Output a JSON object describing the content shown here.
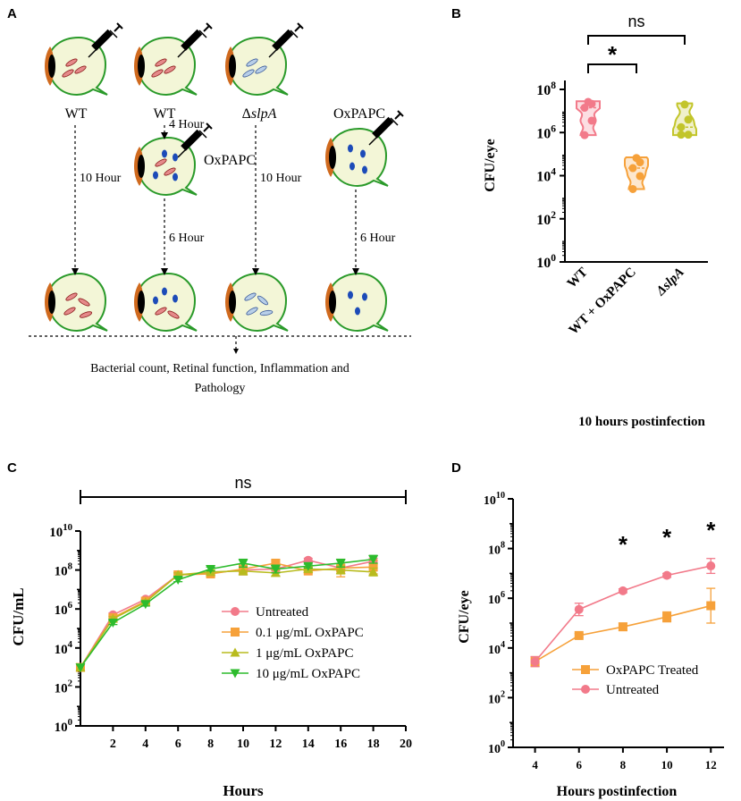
{
  "panels": {
    "a": "A",
    "b": "B",
    "c": "C",
    "d": "D"
  },
  "schematic": {
    "col1_label": "WT",
    "col2_label": "WT",
    "col3_label_prefix": "Δ",
    "col3_label_gene": "slpA",
    "col4_top_label": "OxPAPC",
    "arrow_4h": "4 Hour",
    "col2_mid_label": "OxPAPC",
    "arrow_10h_left": "10 Hour",
    "arrow_6h_mid": "6 Hour",
    "arrow_10h_right": "10 Hour",
    "arrow_6h_right": "6 Hour",
    "outcome_line1": "Bacterial count, Retinal function, Inflammation and",
    "outcome_line2": "Pathology",
    "icons": [
      "syringe-icon",
      "eye-icon",
      "bacteria-icon",
      "oxpapc-dot-icon"
    ]
  },
  "chart_data": [
    {
      "id": "B",
      "type": "violin",
      "title": "",
      "ylabel": "CFU/eye",
      "xlabel": "10 hours postinfection",
      "yscale": "log10",
      "ylim": [
        0,
        8
      ],
      "yticks": [
        {
          "b": "10",
          "e": "0"
        },
        {
          "b": "10",
          "e": "2"
        },
        {
          "b": "10",
          "e": "4"
        },
        {
          "b": "10",
          "e": "6"
        },
        {
          "b": "10",
          "e": "8"
        }
      ],
      "categories": [
        "WT",
        "WT + OxPAPC",
        "ΔslpA"
      ],
      "colors": [
        "#f27a8a",
        "#f6a13a",
        "#c2c52a"
      ],
      "groups": [
        {
          "name": "WT",
          "log_points": [
            7.42,
            7.33,
            7.15,
            6.55,
            5.88
          ],
          "range": [
            5.88,
            7.45
          ]
        },
        {
          "name": "WT + OxPAPC",
          "log_points": [
            4.82,
            4.62,
            4.35,
            3.98,
            3.38
          ],
          "range": [
            3.38,
            4.85
          ]
        },
        {
          "name": "ΔslpA",
          "log_points": [
            7.3,
            6.6,
            6.25,
            5.9,
            5.9
          ],
          "range": [
            5.88,
            7.35
          ]
        }
      ],
      "annotations": [
        {
          "text": "ns",
          "between": [
            "WT",
            "ΔslpA"
          ]
        },
        {
          "text": "*",
          "between": [
            "WT",
            "WT + OxPAPC"
          ]
        }
      ]
    },
    {
      "id": "C",
      "type": "line",
      "ylabel": "CFU/mL",
      "xlabel": "Hours",
      "yscale": "log10",
      "xlim": [
        0,
        20
      ],
      "ylim": [
        0,
        10
      ],
      "xticks": [
        "2",
        "4",
        "6",
        "8",
        "10",
        "12",
        "14",
        "16",
        "18",
        "20"
      ],
      "yticks": [
        {
          "b": "10",
          "e": "0"
        },
        {
          "b": "10",
          "e": "2"
        },
        {
          "b": "10",
          "e": "4"
        },
        {
          "b": "10",
          "e": "6"
        },
        {
          "b": "10",
          "e": "8"
        },
        {
          "b": "10",
          "e": "10"
        }
      ],
      "x": [
        0,
        2,
        4,
        6,
        8,
        10,
        12,
        14,
        16,
        18
      ],
      "series": [
        {
          "name": "Untreated",
          "color": "#f27a8a",
          "marker": "circle",
          "log_values": [
            3.0,
            5.7,
            6.5,
            7.75,
            7.85,
            8.0,
            8.05,
            8.5,
            8.1,
            8.45
          ],
          "err": [
            0,
            0.1,
            0.1,
            0.1,
            0.1,
            0.25,
            0.1,
            0.1,
            0.15,
            0.15
          ]
        },
        {
          "name": "0.1 μg/mL OxPAPC",
          "color": "#f6a13a",
          "marker": "square",
          "log_values": [
            3.0,
            5.55,
            6.4,
            7.75,
            7.8,
            8.05,
            8.35,
            7.95,
            8.1,
            8.15
          ],
          "err": [
            0,
            0.1,
            0.1,
            0.1,
            0.1,
            0.2,
            0.15,
            0.1,
            0.45,
            0.35
          ]
        },
        {
          "name": "1 μg/mL OxPAPC",
          "color": "#b8bb1e",
          "marker": "triangle-up",
          "log_values": [
            3.0,
            5.5,
            6.35,
            7.75,
            7.9,
            7.95,
            7.85,
            8.05,
            8.0,
            7.9
          ],
          "err": [
            0,
            0.1,
            0.1,
            0.1,
            0.1,
            0.2,
            0.15,
            0.1,
            0.2,
            0.2
          ]
        },
        {
          "name": "10 μg/mL OxPAPC",
          "color": "#2dbb2d",
          "marker": "triangle-down",
          "log_values": [
            3.0,
            5.3,
            6.25,
            7.5,
            8.05,
            8.35,
            8.05,
            8.2,
            8.35,
            8.55
          ],
          "err": [
            0,
            0.1,
            0.1,
            0.1,
            0.1,
            0.2,
            0.2,
            0.1,
            0.2,
            0.2
          ]
        }
      ],
      "annotations": [
        {
          "text": "ns",
          "span": [
            0,
            20
          ]
        }
      ],
      "legend_position": "center-right"
    },
    {
      "id": "D",
      "type": "line",
      "ylabel": "CFU/eye",
      "xlabel": "Hours postinfection",
      "yscale": "log10",
      "xlim": [
        3,
        12.6
      ],
      "ylim": [
        0,
        10
      ],
      "xticks": [
        "4",
        "6",
        "8",
        "10",
        "12"
      ],
      "yticks": [
        {
          "b": "10",
          "e": "0"
        },
        {
          "b": "10",
          "e": "2"
        },
        {
          "b": "10",
          "e": "4"
        },
        {
          "b": "10",
          "e": "6"
        },
        {
          "b": "10",
          "e": "8"
        },
        {
          "b": "10",
          "e": "10"
        }
      ],
      "x": [
        4,
        6,
        8,
        10,
        12
      ],
      "series": [
        {
          "name": "OxPAPC Treated",
          "color": "#f6a13a",
          "marker": "square",
          "log_values": [
            3.45,
            4.5,
            4.85,
            5.25,
            5.7
          ],
          "err": [
            0.2,
            0.08,
            0.15,
            0.2,
            0.7
          ]
        },
        {
          "name": "Untreated",
          "color": "#f27a8a",
          "marker": "circle",
          "log_values": [
            3.45,
            5.55,
            6.3,
            6.92,
            7.3
          ],
          "err": [
            0.2,
            0.25,
            0.08,
            0.08,
            0.3
          ]
        }
      ],
      "annotations": [
        {
          "text": "*",
          "x": 8
        },
        {
          "text": "*",
          "x": 10
        },
        {
          "text": "*",
          "x": 12
        }
      ],
      "legend_position": "bottom-right"
    }
  ]
}
